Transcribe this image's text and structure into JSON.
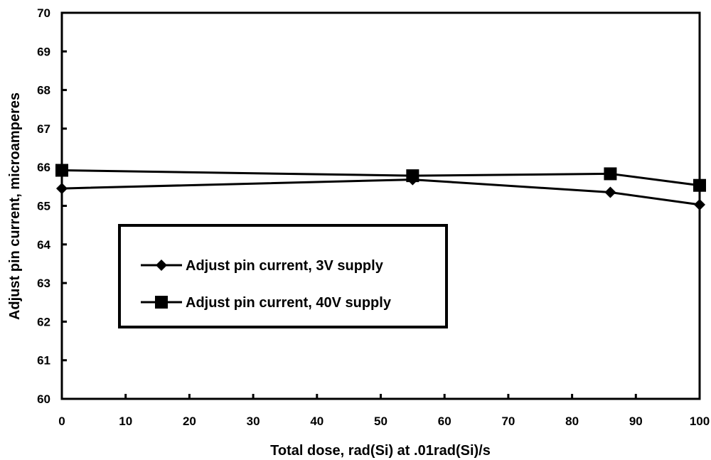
{
  "chart_data": {
    "type": "line",
    "title": "",
    "xlabel": "Total dose, rad(Si) at .01rad(Si)/s",
    "ylabel": "Adjust pin current, microamperes",
    "xlim": [
      0,
      100
    ],
    "ylim": [
      60,
      70
    ],
    "xticks": [
      "0",
      "10",
      "20",
      "30",
      "40",
      "50",
      "60",
      "70",
      "80",
      "90",
      "100"
    ],
    "yticks": [
      "60",
      "61",
      "62",
      "63",
      "64",
      "65",
      "66",
      "67",
      "68",
      "69",
      "70"
    ],
    "grid": false,
    "legend_position": "inside-left",
    "series": [
      {
        "name": "Adjust pin current, 3V supply",
        "marker": "diamond",
        "color": "#000000",
        "x": [
          0,
          55,
          86,
          100
        ],
        "y": [
          65.45,
          65.68,
          65.35,
          65.03
        ]
      },
      {
        "name": "Adjust pin current, 40V supply",
        "marker": "square",
        "color": "#000000",
        "x": [
          0,
          55,
          86,
          100
        ],
        "y": [
          65.92,
          65.78,
          65.83,
          65.53
        ]
      }
    ]
  }
}
